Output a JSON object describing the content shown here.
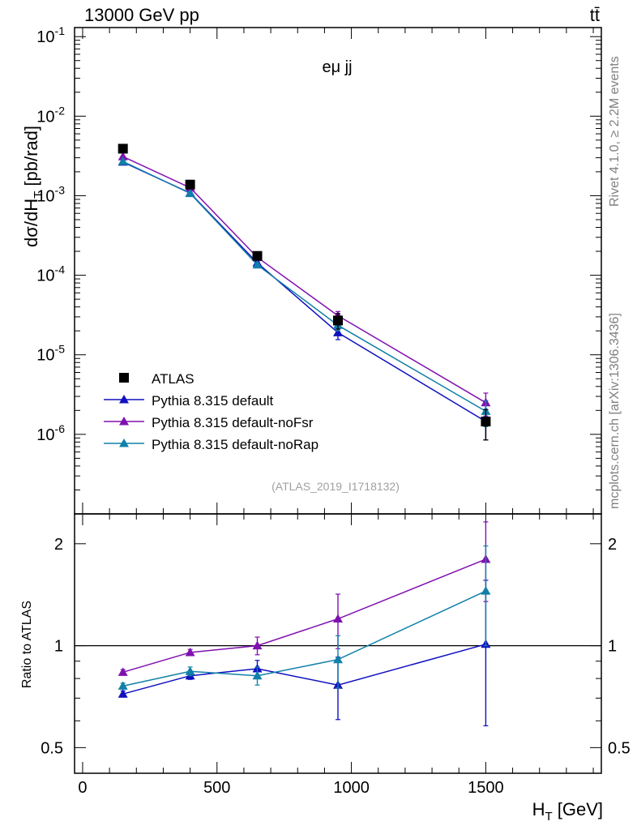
{
  "header": {
    "beam": "13000 GeV pp",
    "process": "tt̄",
    "channel": "eμ jj",
    "analysis_tag": "(ATLAS_2019_I1718132)",
    "side_rivet": "Rivet 4.1.0, ≥ 2.2M events",
    "side_mcplots": "mcplots.cern.ch [arXiv:1306.3436]"
  },
  "colors": {
    "data": "#000000",
    "default": "#1010c0",
    "noFsr": "#8010b0",
    "noRap": "#1080a8",
    "side_text": "#808080"
  },
  "chart_data": [
    {
      "type": "scatter",
      "panel": "main",
      "ylabel": "dσ/dH_T [pb/rad]",
      "yscale": "log",
      "ylim": [
        1e-07,
        0.13
      ],
      "xlim": [
        -30,
        1930
      ],
      "y_tick_labels": [
        "10^-6",
        "10^-5",
        "10^-4",
        "10^-3",
        "10^-2",
        "10^-1"
      ],
      "x": [
        150,
        400,
        650,
        950,
        1500
      ],
      "series": [
        {
          "name": "ATLAS",
          "marker": "square",
          "values": [
            0.0039,
            0.00138,
            0.000175,
            2.7e-05,
            1.45e-06
          ],
          "err_hi": [
            0.00025,
            7e-05,
            1.2e-05,
            6e-06,
            6e-07
          ],
          "err_lo": [
            0.00025,
            7e-05,
            1.2e-05,
            6e-06,
            6e-07
          ]
        },
        {
          "name": "Pythia 8.315 default",
          "marker": "triangle",
          "values": [
            0.00265,
            0.00108,
            0.000143,
            1.9e-05,
            1.45e-06
          ],
          "err_hi": [
            5e-05,
            2e-05,
            5e-06,
            3.5e-06,
            6e-07
          ],
          "err_lo": [
            5e-05,
            2e-05,
            5e-06,
            3.5e-06,
            6e-07
          ]
        },
        {
          "name": "Pythia 8.315 default-noFsr",
          "marker": "triangle",
          "values": [
            0.0031,
            0.00126,
            0.000168,
            3.1e-05,
            2.5e-06
          ],
          "err_hi": [
            5e-05,
            2e-05,
            5e-06,
            4e-06,
            8e-07
          ],
          "err_lo": [
            5e-05,
            2e-05,
            5e-06,
            4e-06,
            8e-07
          ]
        },
        {
          "name": "Pythia 8.315 default-noRap",
          "marker": "triangle",
          "values": [
            0.0027,
            0.00107,
            0.000135,
            2.35e-05,
            1.95e-06
          ],
          "err_hi": [
            5e-05,
            2e-05,
            5e-06,
            3.5e-06,
            7e-07
          ],
          "err_lo": [
            5e-05,
            2e-05,
            5e-06,
            3.5e-06,
            7e-07
          ]
        }
      ]
    },
    {
      "type": "line",
      "panel": "ratio",
      "xlabel": "H_T [GeV]",
      "ylabel": "Ratio to ATLAS",
      "yscale": "log",
      "ylim": [
        0.42,
        2.45
      ],
      "xlim": [
        -30,
        1930
      ],
      "x_ticks": [
        0,
        500,
        1000,
        1500
      ],
      "x_tick_labels": [
        "0",
        "500",
        "1000",
        "1500"
      ],
      "y_ticks": [
        0.5,
        1,
        2
      ],
      "y_tick_labels": [
        "0.5",
        "1",
        "2"
      ],
      "reference": 1,
      "x": [
        150,
        400,
        650,
        950,
        1500
      ],
      "series": [
        {
          "name": "Pythia 8.315 default",
          "values": [
            0.72,
            0.815,
            0.855,
            0.765,
            1.01
          ],
          "err_hi": [
            0.015,
            0.02,
            0.05,
            0.16,
            0.55
          ],
          "err_lo": [
            0.015,
            0.02,
            0.05,
            0.16,
            0.43
          ]
        },
        {
          "name": "Pythia 8.315 default-noFsr",
          "values": [
            0.835,
            0.955,
            1.0,
            1.2,
            1.8
          ],
          "err_hi": [
            0.015,
            0.02,
            0.06,
            0.22,
            0.52
          ],
          "err_lo": [
            0.015,
            0.02,
            0.06,
            0.22,
            0.45
          ]
        },
        {
          "name": "Pythia 8.315 default-noRap",
          "values": [
            0.76,
            0.84,
            0.815,
            0.91,
            1.45
          ],
          "err_hi": [
            0.015,
            0.025,
            0.05,
            0.16,
            0.52
          ],
          "err_lo": [
            0.015,
            0.025,
            0.05,
            0.16,
            0.45
          ]
        }
      ]
    }
  ]
}
